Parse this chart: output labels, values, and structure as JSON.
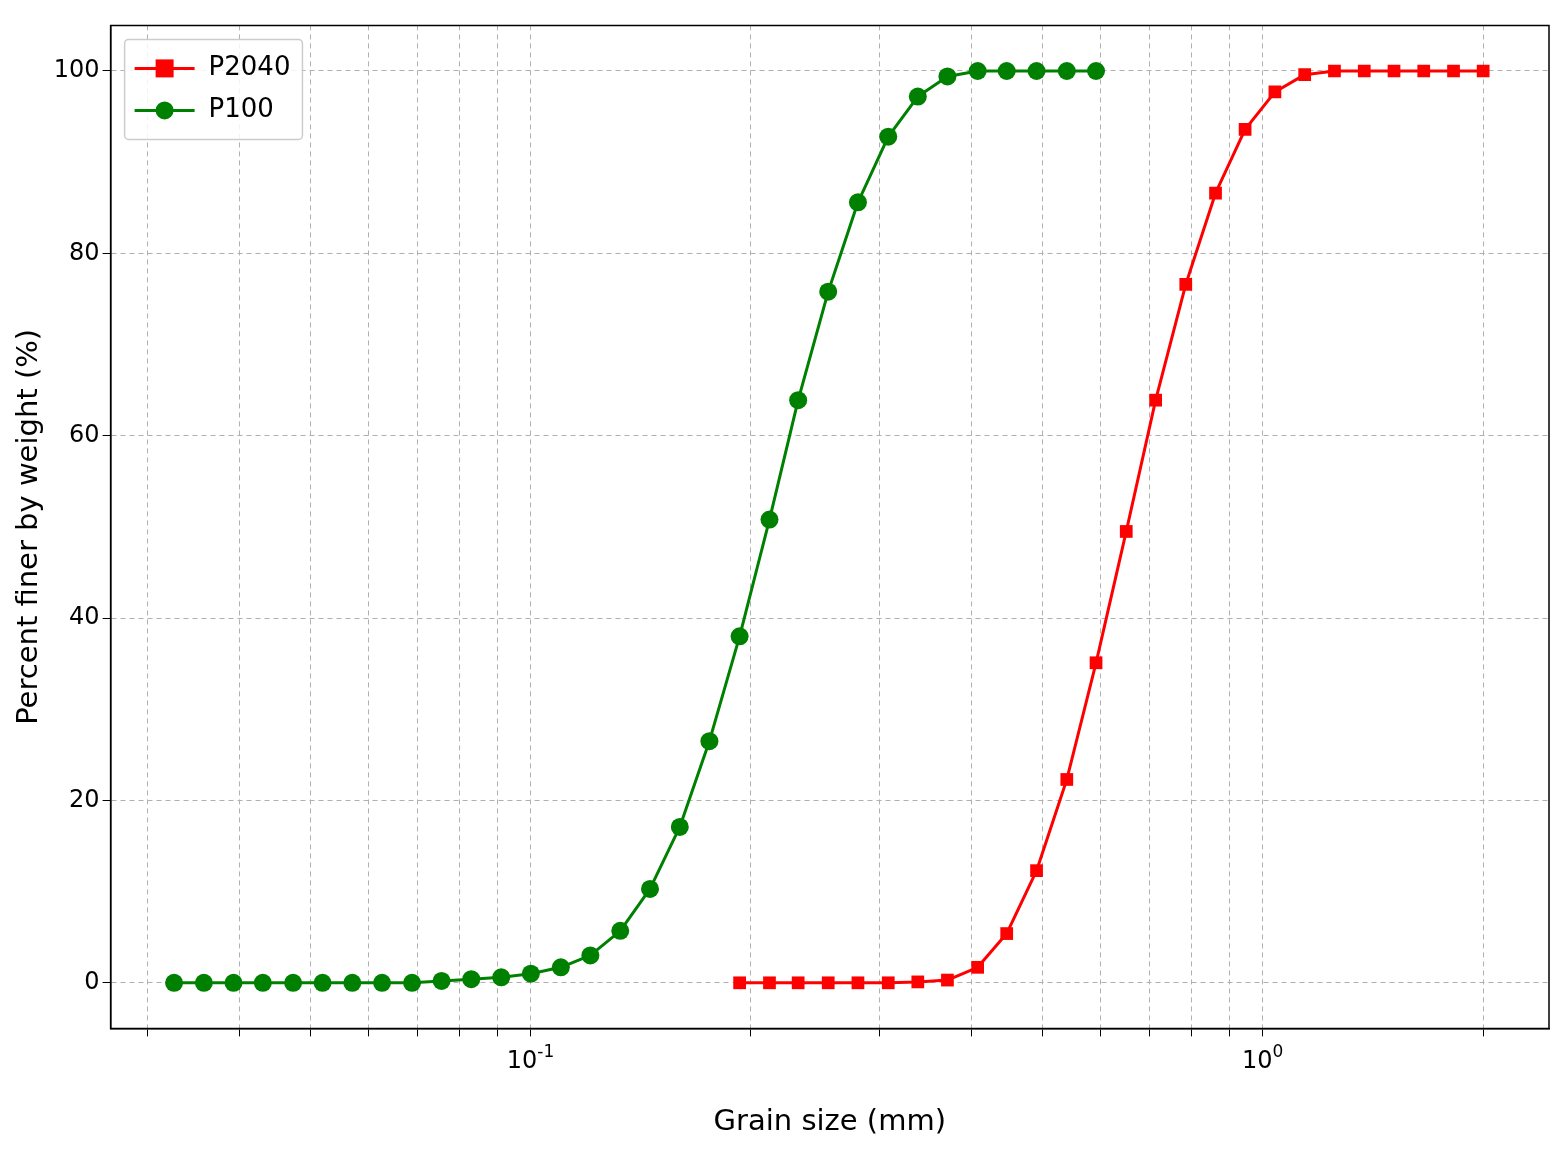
{
  "chart_data": {
    "type": "line",
    "xlabel": "Grain size (mm)",
    "ylabel": "Percent finer by weight (%)",
    "log": "x",
    "xlim": [
      0.0267,
      2.46
    ],
    "ylim": [
      -5,
      105
    ],
    "xticks": [
      {
        "value": 0.03,
        "label": null
      },
      {
        "value": 0.04,
        "label": null
      },
      {
        "value": 0.05,
        "label": null
      },
      {
        "value": 0.06,
        "label": null
      },
      {
        "value": 0.07,
        "label": null
      },
      {
        "value": 0.08,
        "label": null
      },
      {
        "value": 0.09,
        "label": null
      },
      {
        "value": 0.1,
        "label": "10$^{-1}$"
      },
      {
        "value": 0.2,
        "label": null
      },
      {
        "value": 0.3,
        "label": null
      },
      {
        "value": 0.4,
        "label": null
      },
      {
        "value": 0.5,
        "label": null
      },
      {
        "value": 0.6,
        "label": null
      },
      {
        "value": 0.7,
        "label": null
      },
      {
        "value": 0.8,
        "label": null
      },
      {
        "value": 0.9,
        "label": null
      },
      {
        "value": 1,
        "label": "10$^{0}$"
      },
      {
        "value": 2,
        "label": null
      }
    ],
    "yticks": [
      0,
      20,
      40,
      60,
      80,
      100
    ],
    "grid": true,
    "legend": "top left",
    "line_style": "solid",
    "series": [
      {
        "name": "P2040",
        "color": "#ff0000",
        "marker": "square",
        "x": [
          0.193,
          0.212,
          0.232,
          0.255,
          0.28,
          0.308,
          0.338,
          0.371,
          0.408,
          0.447,
          0.491,
          0.54,
          0.592,
          0.651,
          0.714,
          0.785,
          0.862,
          0.946,
          1.039,
          1.141,
          1.253,
          1.376,
          1.511,
          1.659,
          1.822,
          2.0
        ],
        "values": [
          0,
          0,
          0,
          0,
          0,
          0,
          0.1,
          0.3,
          1.7,
          5.4,
          12.3,
          22.3,
          35.1,
          49.5,
          63.9,
          76.6,
          86.6,
          93.6,
          97.7,
          99.6,
          100,
          100,
          100,
          100,
          100,
          100
        ]
      },
      {
        "name": "P100",
        "color": "#008000",
        "marker": "circle",
        "x": [
          0.0326,
          0.0358,
          0.0393,
          0.0431,
          0.0474,
          0.052,
          0.0571,
          0.0627,
          0.0689,
          0.0756,
          0.083,
          0.0912,
          0.1001,
          0.11,
          0.1207,
          0.1326,
          0.1456,
          0.1599,
          0.1755,
          0.193,
          0.212,
          0.232,
          0.255,
          0.28,
          0.308,
          0.338,
          0.371,
          0.408,
          0.447,
          0.491,
          0.54,
          0.592
        ],
        "values": [
          0,
          0,
          0,
          0,
          0,
          0,
          0,
          0,
          0,
          0.2,
          0.4,
          0.6,
          1.0,
          1.7,
          3.0,
          5.7,
          10.3,
          17.1,
          26.5,
          38.0,
          50.8,
          63.9,
          75.8,
          85.6,
          92.8,
          97.2,
          99.4,
          100,
          100,
          100,
          100,
          100
        ]
      }
    ]
  }
}
